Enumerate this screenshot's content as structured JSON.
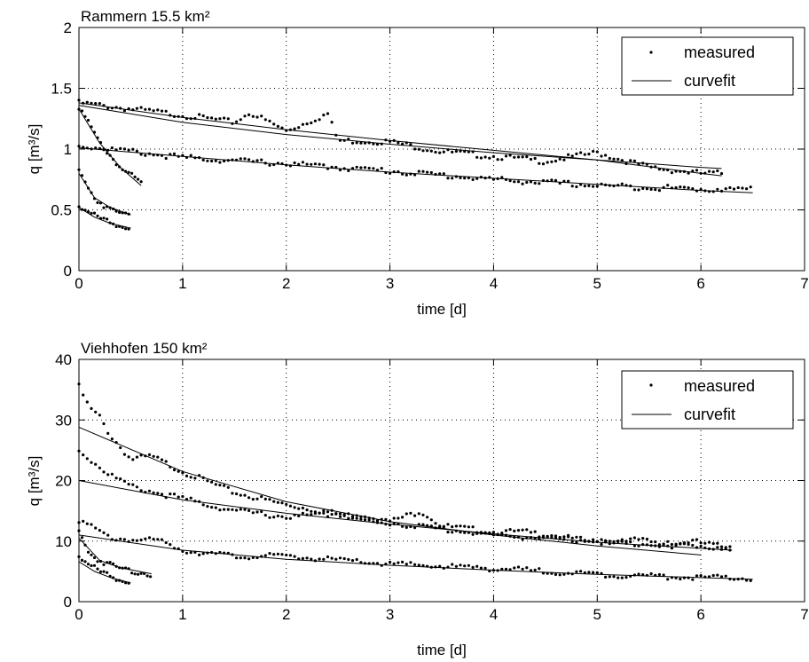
{
  "chart_data": [
    {
      "type": "scatter",
      "title": "Rammern 15.5 km²",
      "xlabel": "time [d]",
      "ylabel": "q [m³/s]",
      "xlim": [
        0,
        7
      ],
      "ylim": [
        0,
        2
      ],
      "xticks": [
        "0",
        "1",
        "2",
        "3",
        "4",
        "5",
        "6",
        "7"
      ],
      "yticks": [
        "0",
        "0.5",
        "1",
        "1.5",
        "2"
      ],
      "grid": true,
      "legend_position": "top-right",
      "legend": [
        "measured",
        "curvefit"
      ],
      "series": [
        {
          "name": "measured",
          "kind": "points",
          "segments": [
            {
              "x": [
                0,
                0.5,
                1,
                1.5,
                1.65,
                2,
                2.4,
                2.5,
                3,
                3.5,
                4,
                4.5,
                5,
                5.5,
                6,
                6.2
              ],
              "y": [
                1.38,
                1.33,
                1.28,
                1.22,
                1.3,
                1.15,
                1.29,
                1.07,
                1.06,
                0.98,
                0.94,
                0.9,
                0.97,
                0.85,
                0.8,
                0.8
              ]
            },
            {
              "x": [
                0,
                1,
                2,
                3,
                4,
                5,
                6,
                6.5
              ],
              "y": [
                1.03,
                0.93,
                0.88,
                0.82,
                0.75,
                0.7,
                0.67,
                0.67
              ]
            },
            {
              "x": [
                0,
                0.2,
                0.4,
                0.6
              ],
              "y": [
                1.35,
                1.05,
                0.85,
                0.72
              ]
            },
            {
              "x": [
                0,
                0.15,
                0.3,
                0.5
              ],
              "y": [
                0.82,
                0.6,
                0.5,
                0.45
              ]
            },
            {
              "x": [
                0,
                0.15,
                0.3,
                0.5
              ],
              "y": [
                0.53,
                0.45,
                0.4,
                0.35
              ]
            }
          ]
        },
        {
          "name": "curvefit",
          "kind": "line",
          "segments": [
            {
              "x": [
                0,
                1,
                2,
                3,
                4,
                5,
                6,
                6.2
              ],
              "y": [
                1.36,
                1.22,
                1.12,
                1.04,
                0.97,
                0.91,
                0.85,
                0.84
              ]
            },
            {
              "x": [
                0,
                1,
                2,
                3,
                4,
                5,
                6,
                6.2
              ],
              "y": [
                1.38,
                1.26,
                1.16,
                1.07,
                0.99,
                0.91,
                0.8,
                0.78
              ]
            },
            {
              "x": [
                0,
                1,
                2,
                3,
                4,
                5,
                6,
                6.5
              ],
              "y": [
                1.01,
                0.94,
                0.87,
                0.81,
                0.76,
                0.71,
                0.66,
                0.64
              ]
            },
            {
              "x": [
                0,
                0.2,
                0.4,
                0.6
              ],
              "y": [
                1.33,
                1.05,
                0.85,
                0.7
              ]
            },
            {
              "x": [
                0,
                0.15,
                0.3,
                0.5
              ],
              "y": [
                0.8,
                0.6,
                0.52,
                0.46
              ]
            },
            {
              "x": [
                0,
                0.15,
                0.3,
                0.5
              ],
              "y": [
                0.52,
                0.44,
                0.39,
                0.35
              ]
            }
          ]
        }
      ]
    },
    {
      "type": "scatter",
      "title": "Viehhofen 150 km²",
      "xlabel": "time [d]",
      "ylabel": "q [m³/s]",
      "xlim": [
        0,
        7
      ],
      "ylim": [
        0,
        40
      ],
      "xticks": [
        "0",
        "1",
        "2",
        "3",
        "4",
        "5",
        "6",
        "7"
      ],
      "yticks": [
        "0",
        "10",
        "20",
        "30",
        "40"
      ],
      "grid": true,
      "legend_position": "top-right",
      "legend": [
        "measured",
        "curvefit"
      ],
      "series": [
        {
          "name": "measured",
          "kind": "points",
          "segments": [
            {
              "x": [
                0,
                0.1,
                0.2,
                0.3,
                0.5,
                0.7,
                1,
                1.5,
                2,
                2.5,
                3,
                3.3,
                3.5,
                4,
                4.3,
                4.5,
                5,
                5.4,
                5.7,
                5.9,
                6.3
              ],
              "y": [
                35.5,
                32,
                30.5,
                27.5,
                23.5,
                24,
                21.5,
                18,
                16,
                14.5,
                13.2,
                15,
                12.5,
                11.5,
                11.5,
                11,
                9.8,
                10.2,
                9.2,
                10,
                8.8
              ]
            },
            {
              "x": [
                0,
                0.25,
                0.5,
                1,
                1.5,
                2,
                2.5,
                3,
                3.5,
                4,
                5,
                6,
                6.3
              ],
              "y": [
                25,
                21.5,
                19,
                17,
                15,
                14,
                14.5,
                13,
                12,
                11,
                10,
                9.2,
                8.8
              ]
            },
            {
              "x": [
                0,
                0.3,
                0.8,
                1,
                1.5,
                2,
                3,
                4,
                4.5,
                5,
                6,
                6.5
              ],
              "y": [
                13.5,
                10.5,
                10,
                8.5,
                7.5,
                7.5,
                6.2,
                5.5,
                5,
                4.5,
                4,
                3.8
              ]
            },
            {
              "x": [
                0,
                0.1,
                0.2,
                0.4,
                0.7
              ],
              "y": [
                11.5,
                8,
                6.8,
                5.5,
                4.5
              ]
            },
            {
              "x": [
                0,
                0.1,
                0.2,
                0.35,
                0.5
              ],
              "y": [
                7.5,
                6,
                5,
                4,
                3.2
              ]
            }
          ]
        },
        {
          "name": "curvefit",
          "kind": "line",
          "segments": [
            {
              "x": [
                0,
                1,
                2,
                3,
                4,
                5,
                6
              ],
              "y": [
                28.8,
                21.5,
                16.5,
                13.2,
                11,
                9.2,
                7.7
              ]
            },
            {
              "x": [
                0,
                1,
                2,
                3,
                4,
                5,
                6.3
              ],
              "y": [
                20,
                16.8,
                14.6,
                12.8,
                11.2,
                9.8,
                8.5
              ]
            },
            {
              "x": [
                0,
                1,
                2,
                3,
                4,
                5,
                6.5
              ],
              "y": [
                11,
                8.5,
                7,
                6,
                5.2,
                4.5,
                3.7
              ]
            },
            {
              "x": [
                0,
                0.2,
                0.4,
                0.7
              ],
              "y": [
                10.5,
                6.8,
                5.6,
                4.6
              ]
            },
            {
              "x": [
                0,
                0.15,
                0.3,
                0.5
              ],
              "y": [
                6.6,
                5,
                4,
                3.1
              ]
            }
          ]
        }
      ]
    }
  ]
}
